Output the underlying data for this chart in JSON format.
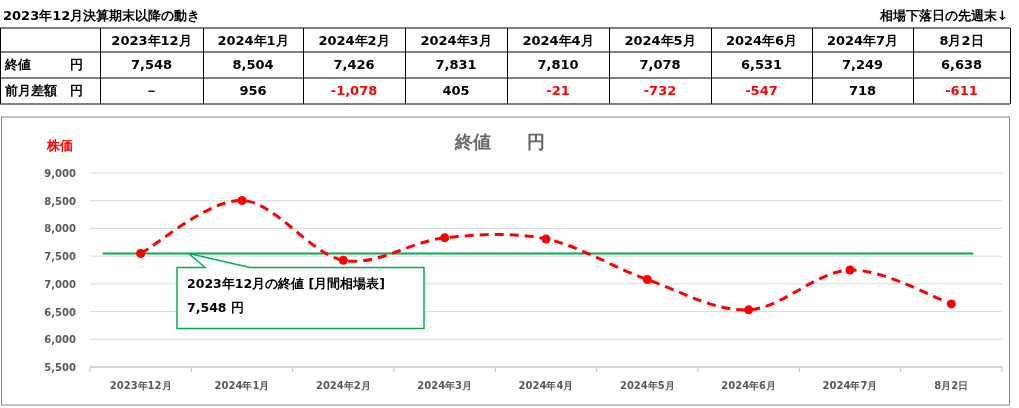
{
  "chart_data": {
    "type": "line",
    "title": "終値　　円",
    "ylabel": "株価",
    "categories": [
      "2023年12月",
      "2024年1月",
      "2024年2月",
      "2024年3月",
      "2024年4月",
      "2024年5月",
      "2024年6月",
      "2024年7月",
      "8月2日"
    ],
    "series": [
      {
        "color": "#ff0000",
        "values": [
          7548,
          8504,
          7426,
          7831,
          7810,
          7078,
          6531,
          7249,
          6638
        ],
        "value_labels": [
          "7,548",
          "8,504",
          "7,426",
          "7,831",
          "7,810",
          "7,078",
          "6,531",
          "7,249",
          "6,638"
        ]
      }
    ],
    "ylim": [
      5500,
      9000
    ],
    "yticks": [
      {
        "value": 5500,
        "label": "5,500"
      },
      {
        "value": 6000,
        "label": "6,000"
      },
      {
        "value": 6500,
        "label": "6,500"
      },
      {
        "value": 7000,
        "label": "7,000"
      },
      {
        "value": 7500,
        "label": "7,500"
      },
      {
        "value": 8000,
        "label": "8,000"
      },
      {
        "value": 8500,
        "label": "8,500"
      },
      {
        "value": 9000,
        "label": "9,000"
      }
    ],
    "grid": "y",
    "marker": "circle",
    "line_style": "dashed",
    "ref_lines": [
      {
        "axis": "y",
        "value": 7548,
        "label": "2023年12月の終値 [月間相場表]　7,548 円",
        "color": "#00b050"
      }
    ],
    "annotations": [
      "2023年12月決算期末以降の動き",
      "相場下落日の先週末↓",
      "終値　　　円",
      "前月差額　円",
      "－",
      "956",
      "-1,078",
      "405",
      "-21",
      "-732",
      "-547",
      "718",
      "-611"
    ]
  }
}
